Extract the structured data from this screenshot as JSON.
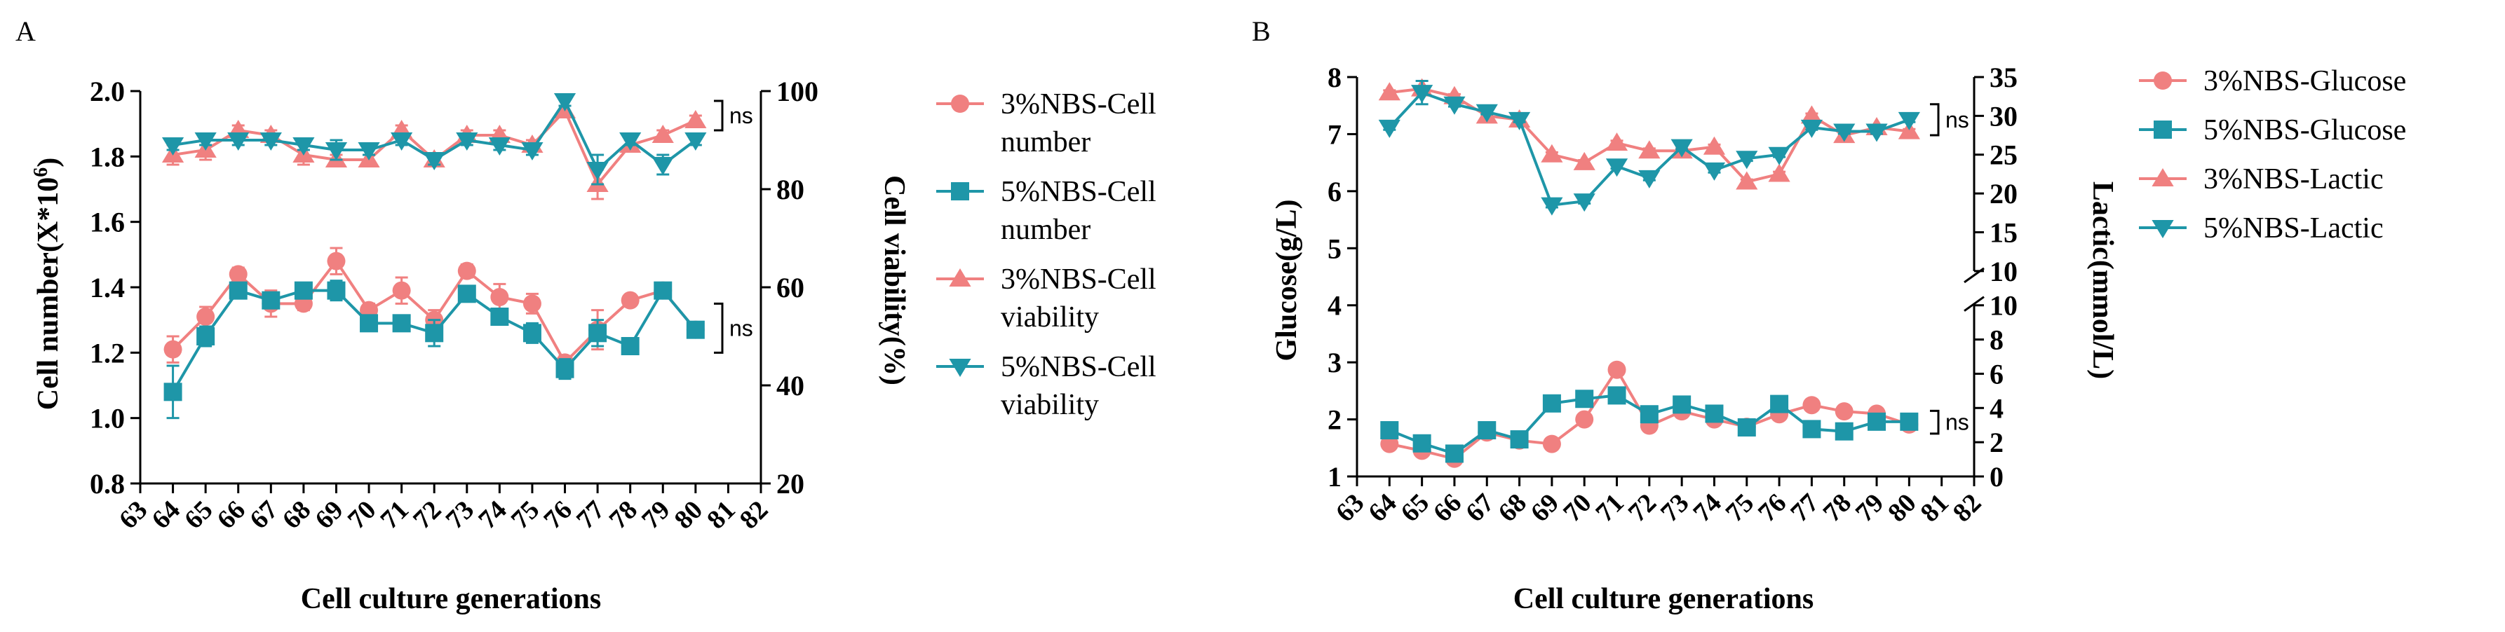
{
  "colors": {
    "pink": "#F08080",
    "teal": "#1E96A8",
    "axis": "#000000"
  },
  "chart_data": [
    {
      "panel": "A",
      "type": "line",
      "xlabel": "Cell culture generations",
      "ylabel": "Cell number(X*10",
      "ylabel_sup": "6",
      "ylabel_end": ")",
      "y2label": "Cell viability(%)",
      "xlim": [
        63,
        82
      ],
      "ylim": [
        0.8,
        2.0
      ],
      "y2lim": [
        20,
        100
      ],
      "x_ticks": [
        "63",
        "64",
        "65",
        "66",
        "67",
        "68",
        "69",
        "70",
        "71",
        "72",
        "73",
        "74",
        "75",
        "76",
        "77",
        "78",
        "79",
        "80",
        "81",
        "82"
      ],
      "y_ticks": [
        "0.8",
        "1.0",
        "1.2",
        "1.4",
        "1.6",
        "1.8",
        "2.0"
      ],
      "y2_ticks": [
        "20",
        "40",
        "60",
        "80",
        "100"
      ],
      "x": [
        64,
        65,
        66,
        67,
        68,
        69,
        70,
        71,
        72,
        73,
        74,
        75,
        76,
        77,
        78,
        79,
        80
      ],
      "series": [
        {
          "name": "3%NBS-Cell number",
          "axis": "left",
          "marker": "circle",
          "color": "#F08080",
          "values": [
            1.21,
            1.31,
            1.44,
            1.35,
            1.35,
            1.48,
            1.33,
            1.39,
            1.3,
            1.45,
            1.37,
            1.35,
            1.17,
            1.27,
            1.36,
            1.39,
            1.27
          ],
          "errors": [
            0.04,
            0.03,
            0.02,
            0.04,
            0.02,
            0.04,
            0.02,
            0.04,
            0.03,
            0.02,
            0.04,
            0.03,
            0.02,
            0.06,
            0.01,
            0.02,
            0.01
          ]
        },
        {
          "name": "5%NBS-Cell number",
          "axis": "left",
          "marker": "square",
          "color": "#1E96A8",
          "values": [
            1.08,
            1.25,
            1.39,
            1.36,
            1.39,
            1.39,
            1.29,
            1.29,
            1.26,
            1.38,
            1.31,
            1.26,
            1.15,
            1.26,
            1.22,
            1.39,
            1.27
          ],
          "errors": [
            0.08,
            0.03,
            0.02,
            0.02,
            0.01,
            0.03,
            0.02,
            0.01,
            0.04,
            0.02,
            0.02,
            0.03,
            0.03,
            0.04,
            0.01,
            0.02,
            0.01
          ]
        },
        {
          "name": "3%NBS-Cell viability",
          "axis": "right",
          "marker": "triangle-up",
          "color": "#F08080",
          "values": [
            87,
            88,
            92,
            91,
            87,
            86,
            86,
            92,
            86,
            91,
            91,
            89,
            96,
            81,
            89,
            91,
            94
          ],
          "errors": [
            2,
            2,
            1,
            1,
            2,
            1,
            1,
            1,
            1,
            1,
            1,
            1,
            1,
            3,
            1,
            1,
            1
          ]
        },
        {
          "name": "5%NBS-Cell viability",
          "axis": "right",
          "marker": "triangle-down",
          "color": "#1E96A8",
          "values": [
            89,
            90,
            90,
            90,
            89,
            88,
            88,
            90,
            86,
            90,
            89,
            88,
            98,
            84,
            90,
            85,
            90
          ],
          "errors": [
            1,
            1,
            1,
            1,
            1,
            2,
            1,
            1,
            1,
            1,
            1,
            1,
            1,
            3,
            1,
            2,
            1
          ]
        }
      ],
      "legend": [
        "3%NBS-Cell number",
        "5%NBS-Cell number",
        "3%NBS-Cell viability",
        "5%NBS-Cell viability"
      ],
      "legend_lines": [
        [
          "3%NBS-Cell",
          "number"
        ],
        [
          "5%NBS-Cell",
          "number"
        ],
        [
          "3%NBS-Cell",
          "viability"
        ],
        [
          "5%NBS-Cell",
          "viability"
        ]
      ],
      "annotations": [
        "ns",
        "ns"
      ]
    },
    {
      "panel": "B",
      "type": "line",
      "xlabel": "Cell culture generations",
      "ylabel": "Glucose(g/L)",
      "y2label": "Lactic(mmol/L)",
      "xlim": [
        63,
        82
      ],
      "ylim": [
        1,
        8
      ],
      "y2_segments": [
        {
          "range": [
            0,
            10
          ],
          "ticks": [
            "0",
            "2",
            "4",
            "6",
            "8",
            "10"
          ]
        },
        {
          "range": [
            10,
            35
          ],
          "ticks": [
            "10",
            "15",
            "20",
            "25",
            "30",
            "35"
          ]
        }
      ],
      "x_ticks": [
        "63",
        "64",
        "65",
        "66",
        "67",
        "68",
        "69",
        "70",
        "71",
        "72",
        "73",
        "74",
        "75",
        "76",
        "77",
        "78",
        "79",
        "80",
        "81",
        "82"
      ],
      "y_ticks": [
        "1",
        "2",
        "3",
        "4",
        "5",
        "6",
        "7",
        "8"
      ],
      "x": [
        64,
        65,
        66,
        67,
        68,
        69,
        70,
        71,
        72,
        73,
        74,
        75,
        76,
        77,
        78,
        79,
        80
      ],
      "series": [
        {
          "name": "3%NBS-Glucose",
          "axis": "left",
          "marker": "circle",
          "color": "#F08080",
          "values": [
            1.57,
            1.45,
            1.31,
            1.77,
            1.63,
            1.57,
            2.0,
            2.87,
            1.89,
            2.14,
            2.0,
            1.87,
            2.09,
            2.25,
            2.14,
            2.1,
            1.91
          ],
          "errors": [
            0.03,
            0.03,
            0.03,
            0.03,
            0.03,
            0.03,
            0.03,
            0.04,
            0.03,
            0.03,
            0.03,
            0.03,
            0.03,
            0.03,
            0.03,
            0.03,
            0.03
          ]
        },
        {
          "name": "5%NBS-Glucose",
          "axis": "left",
          "marker": "square",
          "color": "#1E96A8",
          "values": [
            1.81,
            1.58,
            1.4,
            1.81,
            1.65,
            2.28,
            2.36,
            2.42,
            2.09,
            2.26,
            2.1,
            1.86,
            2.27,
            1.83,
            1.79,
            1.96,
            1.96
          ],
          "errors": [
            0.03,
            0.03,
            0.03,
            0.03,
            0.03,
            0.03,
            0.03,
            0.03,
            0.03,
            0.03,
            0.03,
            0.03,
            0.03,
            0.03,
            0.03,
            0.03,
            0.03
          ]
        },
        {
          "name": "3%NBS-Lactic",
          "axis": "right",
          "marker": "triangle-up",
          "color": "#F08080",
          "values": [
            33.0,
            33.5,
            32.5,
            30.0,
            29.5,
            25.0,
            24.0,
            26.5,
            25.5,
            25.5,
            26.0,
            21.5,
            22.5,
            30.0,
            27.5,
            28.5,
            28.0
          ],
          "errors": [
            0.3,
            0.3,
            0.3,
            0.3,
            0.3,
            0.3,
            0.3,
            0.3,
            0.3,
            0.3,
            0.3,
            0.3,
            0.3,
            0.3,
            0.3,
            0.3,
            0.3
          ]
        },
        {
          "name": "5%NBS-Lactic",
          "axis": "right",
          "marker": "triangle-down",
          "color": "#1E96A8",
          "values": [
            28.5,
            33.0,
            31.5,
            30.5,
            29.5,
            18.5,
            19.0,
            23.5,
            22.0,
            26.0,
            23.0,
            24.5,
            25.0,
            28.5,
            28.0,
            28.0,
            29.5
          ],
          "errors": [
            0.3,
            1.5,
            0.3,
            0.3,
            0.3,
            0.3,
            0.3,
            0.3,
            0.3,
            0.3,
            0.3,
            0.3,
            0.3,
            0.3,
            0.3,
            0.3,
            0.3
          ]
        }
      ],
      "legend": [
        "3%NBS-Glucose",
        "5%NBS-Glucose",
        "3%NBS-Lactic",
        "5%NBS-Lactic"
      ],
      "annotations": [
        "ns",
        "ns"
      ]
    }
  ]
}
